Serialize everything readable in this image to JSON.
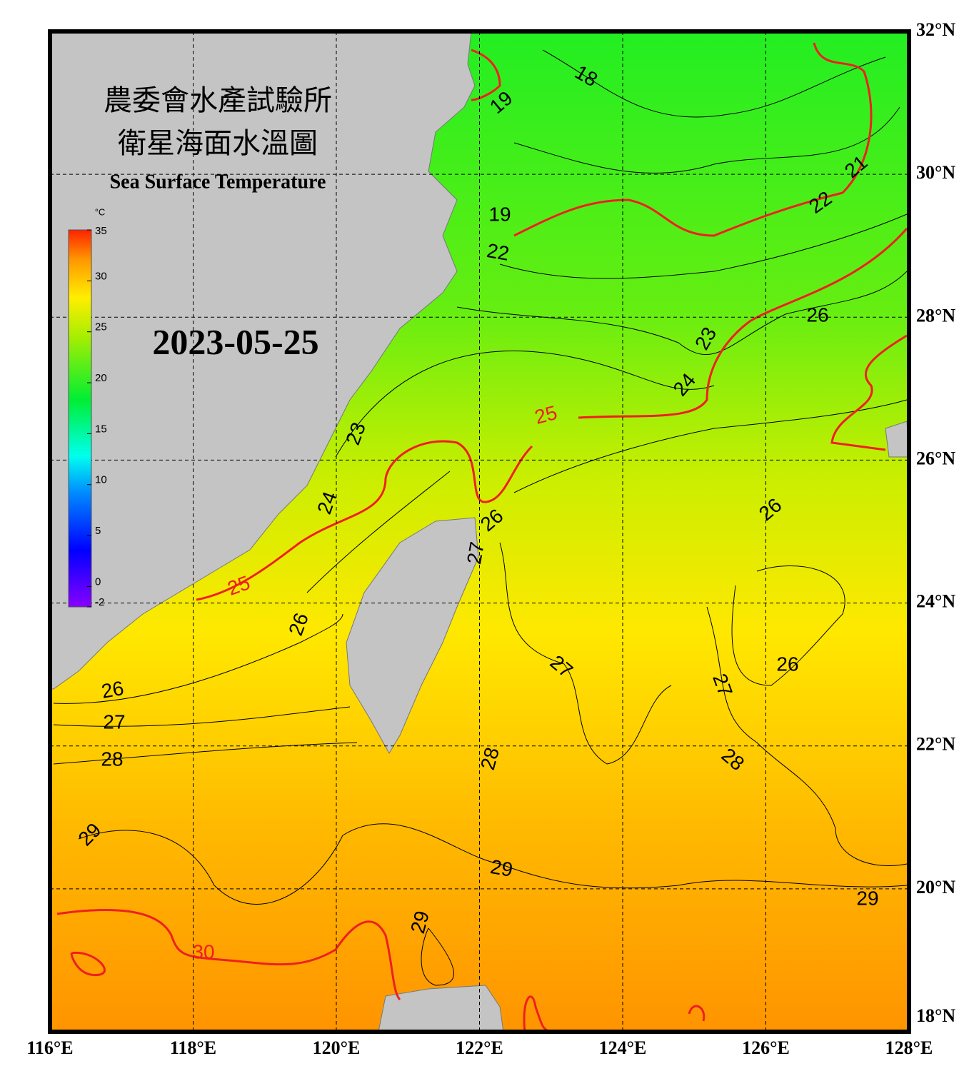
{
  "map": {
    "title_zh": [
      "農委會水產試驗所",
      "衛星海面水溫圖"
    ],
    "title_en": "Sea Surface Temperature",
    "date": "2023-05-25",
    "colorbar": {
      "unit": "°C",
      "range": [
        -2,
        35
      ],
      "ticks": [
        35,
        30,
        25,
        20,
        15,
        10,
        5,
        0,
        -2
      ]
    },
    "lon_ticks": [
      {
        "value": 116,
        "label": "116°E"
      },
      {
        "value": 118,
        "label": "118°E"
      },
      {
        "value": 120,
        "label": "120°E"
      },
      {
        "value": 122,
        "label": "122°E"
      },
      {
        "value": 124,
        "label": "124°E"
      },
      {
        "value": 126,
        "label": "126°E"
      },
      {
        "value": 128,
        "label": "128°E"
      }
    ],
    "lat_ticks": [
      {
        "value": 32,
        "label": "32°N"
      },
      {
        "value": 30,
        "label": "30°N"
      },
      {
        "value": 28,
        "label": "28°N"
      },
      {
        "value": 26,
        "label": "26°N"
      },
      {
        "value": 24,
        "label": "24°N"
      },
      {
        "value": 22,
        "label": "22°N"
      },
      {
        "value": 20,
        "label": "20°N"
      },
      {
        "value": 18,
        "label": "18°N"
      }
    ],
    "contour_labels": [
      18,
      19,
      19,
      21,
      22,
      22,
      23,
      24,
      25,
      26,
      23,
      24,
      25,
      26,
      27,
      26,
      26,
      27,
      26,
      27,
      26,
      27,
      28,
      28,
      28,
      29,
      29,
      29,
      29,
      30
    ],
    "highlight_levels": [
      25,
      30
    ]
  }
}
